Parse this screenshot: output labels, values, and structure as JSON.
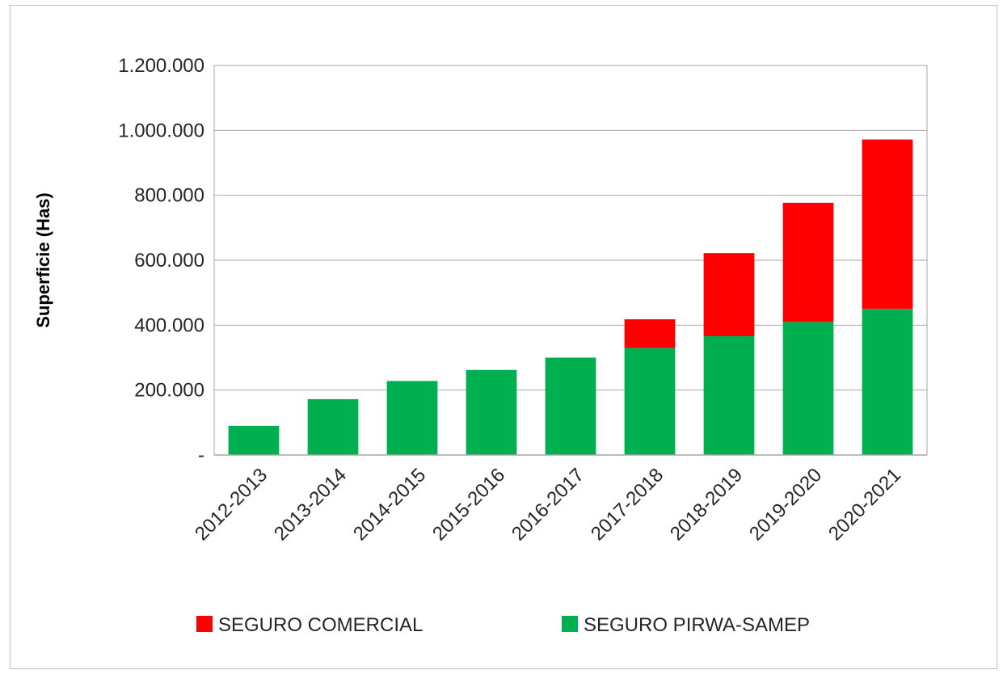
{
  "chart_data": {
    "type": "bar",
    "stacked": true,
    "categories": [
      "2012-2013",
      "2013-2014",
      "2014-2015",
      "2015-2016",
      "2016-2017",
      "2017-2018",
      "2018-2019",
      "2019-2020",
      "2020-2021"
    ],
    "series": [
      {
        "name": "SEGURO PIRWA-SAMEP",
        "color": "#00b050",
        "values": [
          90000,
          172000,
          228000,
          262000,
          300000,
          330000,
          366000,
          410000,
          450000
        ]
      },
      {
        "name": "SEGURO COMERCIAL",
        "color": "#ff0000",
        "values": [
          0,
          0,
          0,
          0,
          0,
          88000,
          256000,
          367000,
          522000
        ]
      }
    ],
    "ylabel": "Superficie (Has)",
    "xlabel": "",
    "ylim": [
      0,
      1200000
    ],
    "y_ticks": [
      {
        "value": 0,
        "label": "-"
      },
      {
        "value": 200000,
        "label": "200.000"
      },
      {
        "value": 400000,
        "label": "400.000"
      },
      {
        "value": 600000,
        "label": "600.000"
      },
      {
        "value": 800000,
        "label": "800.000"
      },
      {
        "value": 1000000,
        "label": "1.000.000"
      },
      {
        "value": 1200000,
        "label": "1.200.000"
      }
    ],
    "grid": true,
    "legend": {
      "position": "bottom",
      "entries": [
        {
          "name": "SEGURO COMERCIAL",
          "color": "#ff0000"
        },
        {
          "name": "SEGURO PIRWA-SAMEP",
          "color": "#00b050"
        }
      ]
    }
  }
}
